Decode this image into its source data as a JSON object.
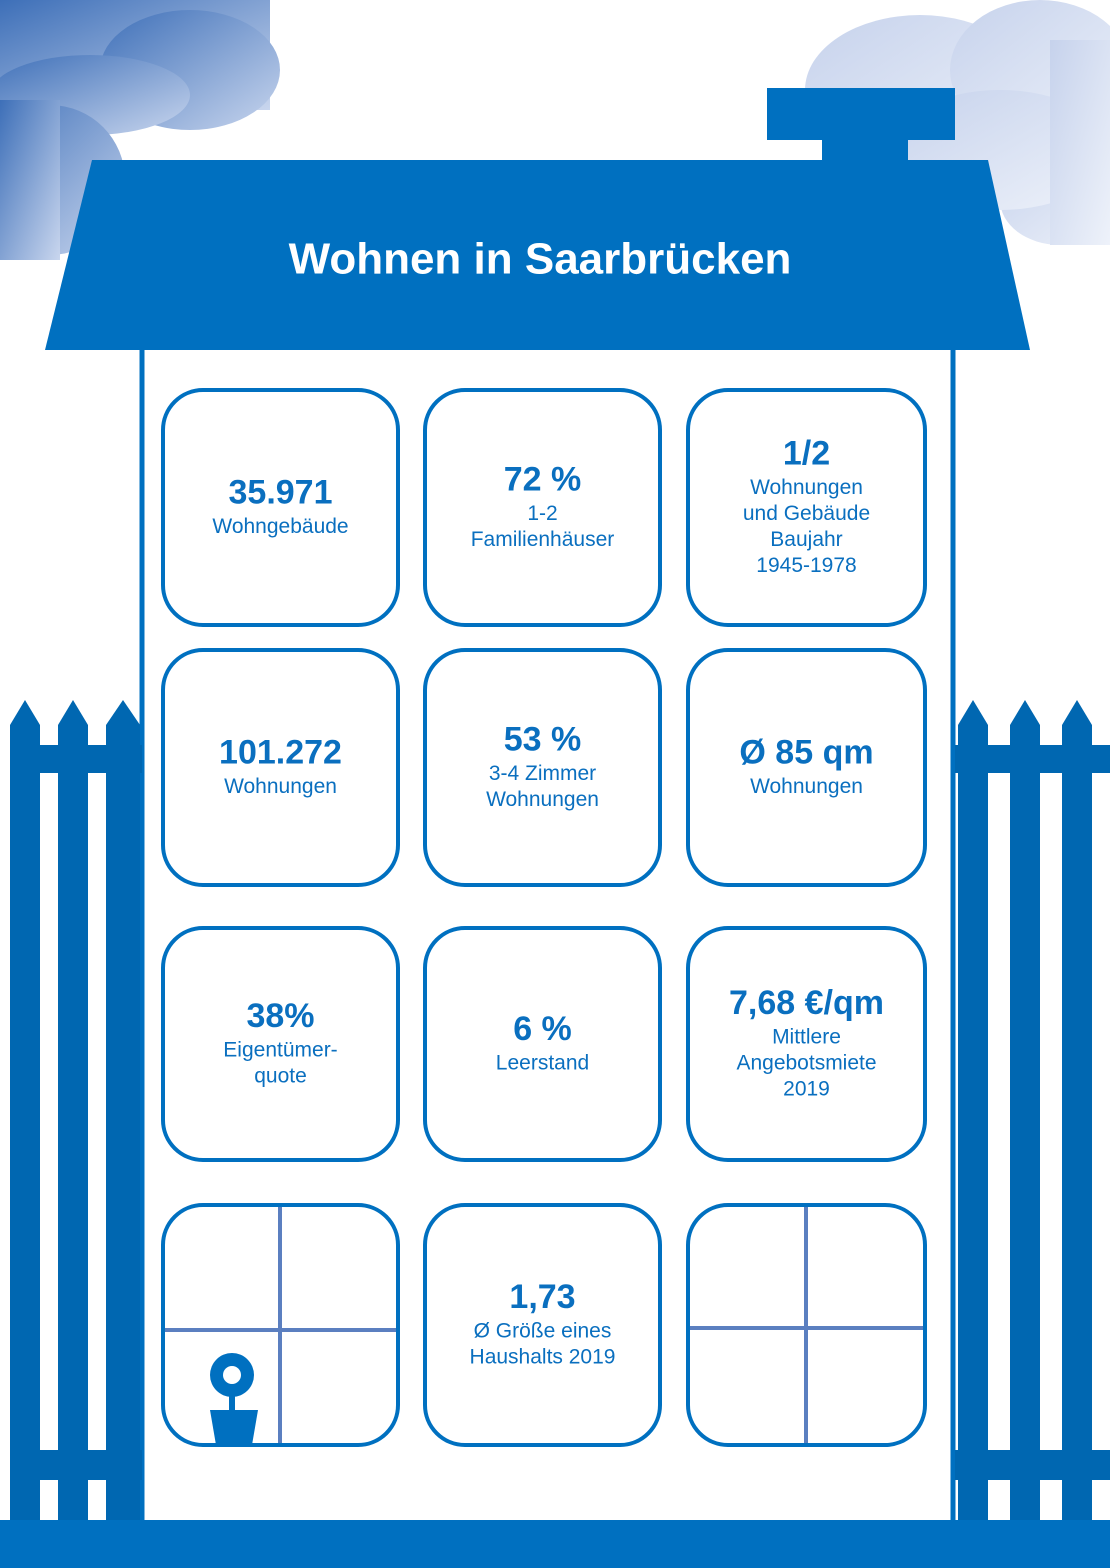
{
  "title": "Wohnen in Saarbrücken",
  "tiles": [
    {
      "value": "35.971",
      "lines": [
        "Wohngebäude"
      ]
    },
    {
      "value": "72 %",
      "lines": [
        "1-2",
        "Familienhäuser"
      ]
    },
    {
      "value": "1/2",
      "lines": [
        "Wohnungen",
        "und Gebäude",
        "Baujahr",
        "1945-1978"
      ]
    },
    {
      "value": "101.272",
      "lines": [
        "Wohnungen"
      ]
    },
    {
      "value": "53 %",
      "lines": [
        "3-4 Zimmer",
        "Wohnungen"
      ]
    },
    {
      "value": "Ø 85 qm",
      "lines": [
        "Wohnungen"
      ]
    },
    {
      "value": "38%",
      "lines": [
        "Eigentümer-",
        "quote"
      ]
    },
    {
      "value": "6 %",
      "lines": [
        "Leerstand"
      ]
    },
    {
      "value": "7,68 €/qm",
      "lines": [
        "Mittlere",
        "Angebotsmiete",
        "2019"
      ]
    },
    {
      "value": "1,73",
      "lines": [
        "Ø Größe eines",
        "Haushalts 2019"
      ]
    }
  ]
}
